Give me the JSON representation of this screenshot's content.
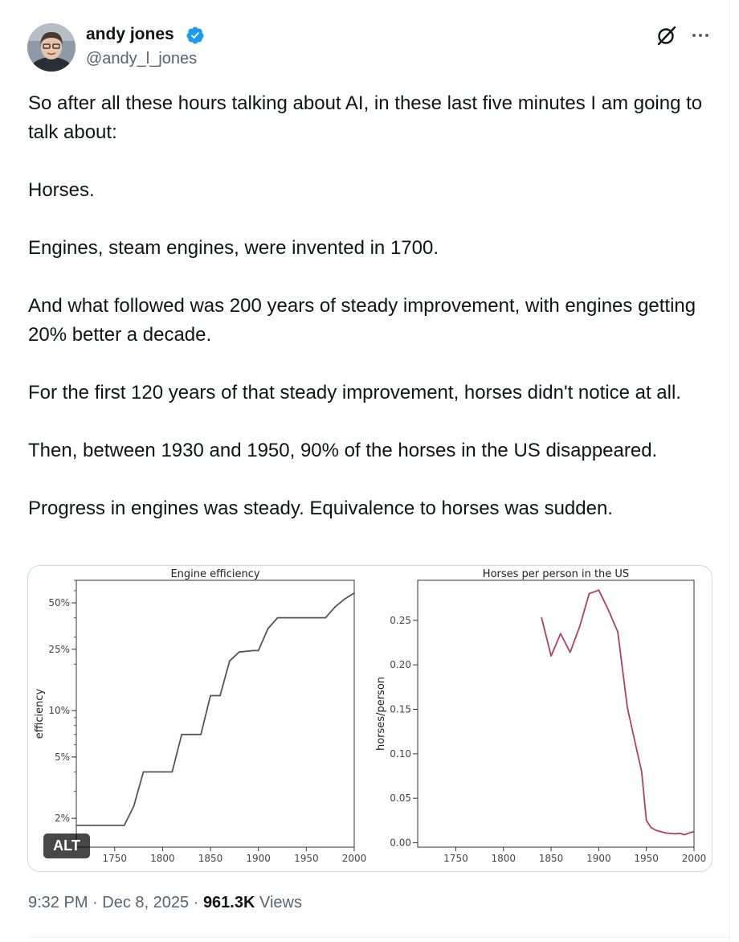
{
  "author": {
    "display_name": "andy jones",
    "handle": "@andy_l_jones",
    "verified": true,
    "verified_color": "#1d9bf0"
  },
  "tweet": {
    "text": "So after all these hours talking about AI, in these last five minutes I am going to talk about:\n\nHorses.\n\nEngines, steam engines, were invented in 1700.\n\nAnd what followed was 200 years of steady improvement, with engines getting 20% better a decade.\n\nFor the first 120 years of that steady improvement, horses didn't notice at all.\n\nThen, between 1930 and 1950, 90% of the horses in the US disappeared.\n\nProgress in engines was steady. Equivalence to horses was sudden."
  },
  "media": {
    "alt_badge": "ALT"
  },
  "meta": {
    "time": "9:32 PM",
    "sep1": "·",
    "date": "Dec 8, 2025",
    "sep2": "·",
    "views": "961.3K",
    "views_label": "Views"
  },
  "icons": {
    "grok": "grok-icon",
    "more": "more-icon",
    "verified": "verified-badge-icon"
  },
  "chart_data": [
    {
      "type": "line",
      "title": "Engine efficiency",
      "xlabel": "",
      "ylabel": "efficiency",
      "y_scale": "log",
      "xlim": [
        1710,
        2000
      ],
      "ylim": [
        1.3,
        70
      ],
      "x_ticks": [
        1750,
        1800,
        1850,
        1900,
        1950,
        2000
      ],
      "y_ticks": [
        2,
        5,
        10,
        25,
        50
      ],
      "y_tick_labels": [
        "2%",
        "5%",
        "10%",
        "25%",
        "50%"
      ],
      "grid": false,
      "series": [
        {
          "color": "#555555",
          "x": [
            1710,
            1760,
            1770,
            1780,
            1800,
            1810,
            1820,
            1835,
            1840,
            1850,
            1855,
            1860,
            1870,
            1880,
            1895,
            1900,
            1910,
            1920,
            1970,
            1980,
            1990,
            2000
          ],
          "values": [
            1.8,
            1.8,
            2.4,
            4.0,
            4.0,
            4.0,
            7.0,
            7.0,
            7.0,
            12.5,
            12.5,
            12.5,
            21,
            24,
            24.5,
            24.5,
            34,
            40,
            40,
            47,
            53,
            58
          ]
        }
      ]
    },
    {
      "type": "line",
      "title": "Horses per person in the US",
      "xlabel": "",
      "ylabel": "horses/person",
      "y_scale": "linear",
      "xlim": [
        1710,
        2000
      ],
      "ylim": [
        -0.005,
        0.295
      ],
      "x_ticks": [
        1750,
        1800,
        1850,
        1900,
        1950,
        2000
      ],
      "y_ticks": [
        0.0,
        0.05,
        0.1,
        0.15,
        0.2,
        0.25
      ],
      "y_tick_labels": [
        "0.00",
        "0.05",
        "0.10",
        "0.15",
        "0.20",
        "0.25"
      ],
      "grid": false,
      "series": [
        {
          "color": "#b0405f",
          "x": [
            1840,
            1850,
            1860,
            1870,
            1880,
            1890,
            1900,
            1910,
            1920,
            1930,
            1940,
            1945,
            1950,
            1955,
            1960,
            1970,
            1980,
            1985,
            1990,
            1995,
            2000
          ],
          "values": [
            0.253,
            0.21,
            0.235,
            0.214,
            0.243,
            0.28,
            0.284,
            0.262,
            0.237,
            0.152,
            0.104,
            0.08,
            0.025,
            0.017,
            0.014,
            0.011,
            0.01,
            0.0105,
            0.009,
            0.011,
            0.0125
          ]
        }
      ]
    }
  ]
}
